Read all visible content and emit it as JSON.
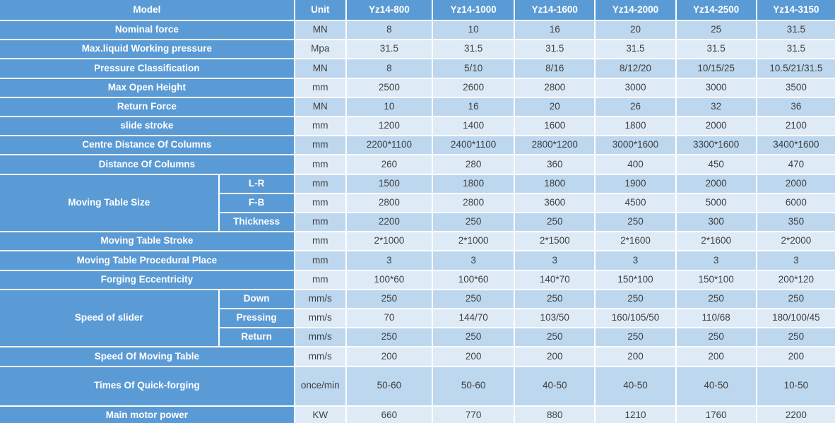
{
  "colors": {
    "accent_blue": "#5B9BD5",
    "row_alt_dark": "#BDD7EE",
    "row_alt_light": "#DEEBF7",
    "grid_border": "#FFFFFF",
    "label_text": "#FFFFFF",
    "value_text": "#404040"
  },
  "table": {
    "header": {
      "model_label": "Model",
      "unit_label": "Unit",
      "models": [
        "Yz14-800",
        "Yz14-1000",
        "Yz14-1600",
        "Yz14-2000",
        "Yz14-2500",
        "Yz14-3150"
      ]
    },
    "rows": [
      {
        "label": "Nominal force",
        "unit": "MN",
        "values": [
          "8",
          "10",
          "16",
          "20",
          "25",
          "31.5"
        ]
      },
      {
        "label": "Max.liquid Working pressure",
        "unit": "Mpa",
        "values": [
          "31.5",
          "31.5",
          "31.5",
          "31.5",
          "31.5",
          "31.5"
        ]
      },
      {
        "label": "Pressure Classification",
        "unit": "MN",
        "values": [
          "8",
          "5/10",
          "8/16",
          "8/12/20",
          "10/15/25",
          "10.5/21/31.5"
        ]
      },
      {
        "label": "Max Open Height",
        "unit": "mm",
        "values": [
          "2500",
          "2600",
          "2800",
          "3000",
          "3000",
          "3500"
        ]
      },
      {
        "label": "Return Force",
        "unit": "MN",
        "values": [
          "10",
          "16",
          "20",
          "26",
          "32",
          "36"
        ]
      },
      {
        "label": "slide stroke",
        "unit": "mm",
        "values": [
          "1200",
          "1400",
          "1600",
          "1800",
          "2000",
          "2100"
        ]
      },
      {
        "label": "Centre Distance Of Columns",
        "unit": "mm",
        "values": [
          "2200*1100",
          "2400*1100",
          "2800*1200",
          "3000*1600",
          "3300*1600",
          "3400*1600"
        ]
      },
      {
        "label": "Distance Of Columns",
        "unit": "mm",
        "values": [
          "260",
          "280",
          "360",
          "400",
          "450",
          "470"
        ]
      },
      {
        "group": "Moving Table Size",
        "group_span": 3,
        "label": "L-R",
        "unit": "mm",
        "values": [
          "1500",
          "1800",
          "1800",
          "1900",
          "2000",
          "2000"
        ]
      },
      {
        "sub": true,
        "label": "F-B",
        "unit": "mm",
        "values": [
          "2800",
          "2800",
          "3600",
          "4500",
          "5000",
          "6000"
        ]
      },
      {
        "sub": true,
        "label": "Thickness",
        "unit": "mm",
        "values": [
          "2200",
          "250",
          "250",
          "250",
          "300",
          "350"
        ]
      },
      {
        "label": "Moving Table Stroke",
        "unit": "mm",
        "values": [
          "2*1000",
          "2*1000",
          "2*1500",
          "2*1600",
          "2*1600",
          "2*2000"
        ]
      },
      {
        "label": "Moving Table Procedural Place",
        "unit": "mm",
        "values": [
          "3",
          "3",
          "3",
          "3",
          "3",
          "3"
        ]
      },
      {
        "label": "Forging Eccentricity",
        "unit": "mm",
        "values": [
          "100*60",
          "100*60",
          "140*70",
          "150*100",
          "150*100",
          "200*120"
        ]
      },
      {
        "group": "Speed of slider",
        "group_span": 3,
        "label": "Down",
        "unit": "mm/s",
        "values": [
          "250",
          "250",
          "250",
          "250",
          "250",
          "250"
        ]
      },
      {
        "sub": true,
        "label": "Pressing",
        "unit": "mm/s",
        "values": [
          "70",
          "144/70",
          "103/50",
          "160/105/50",
          "110/68",
          "180/100/45"
        ]
      },
      {
        "sub": true,
        "label": "Return",
        "unit": "mm/s",
        "values": [
          "250",
          "250",
          "250",
          "250",
          "250",
          "250"
        ]
      },
      {
        "label": "Speed Of Moving Table",
        "unit": "mm/s",
        "values": [
          "200",
          "200",
          "200",
          "200",
          "200",
          "200"
        ]
      },
      {
        "label": "Times Of Quick-forging",
        "unit": "once/min",
        "tall": true,
        "values": [
          "50-60",
          "50-60",
          "40-50",
          "40-50",
          "40-50",
          "10-50"
        ]
      },
      {
        "label": "Main motor power",
        "unit": "KW",
        "values": [
          "660",
          "770",
          "880",
          "1210",
          "1760",
          "2200"
        ]
      }
    ]
  }
}
